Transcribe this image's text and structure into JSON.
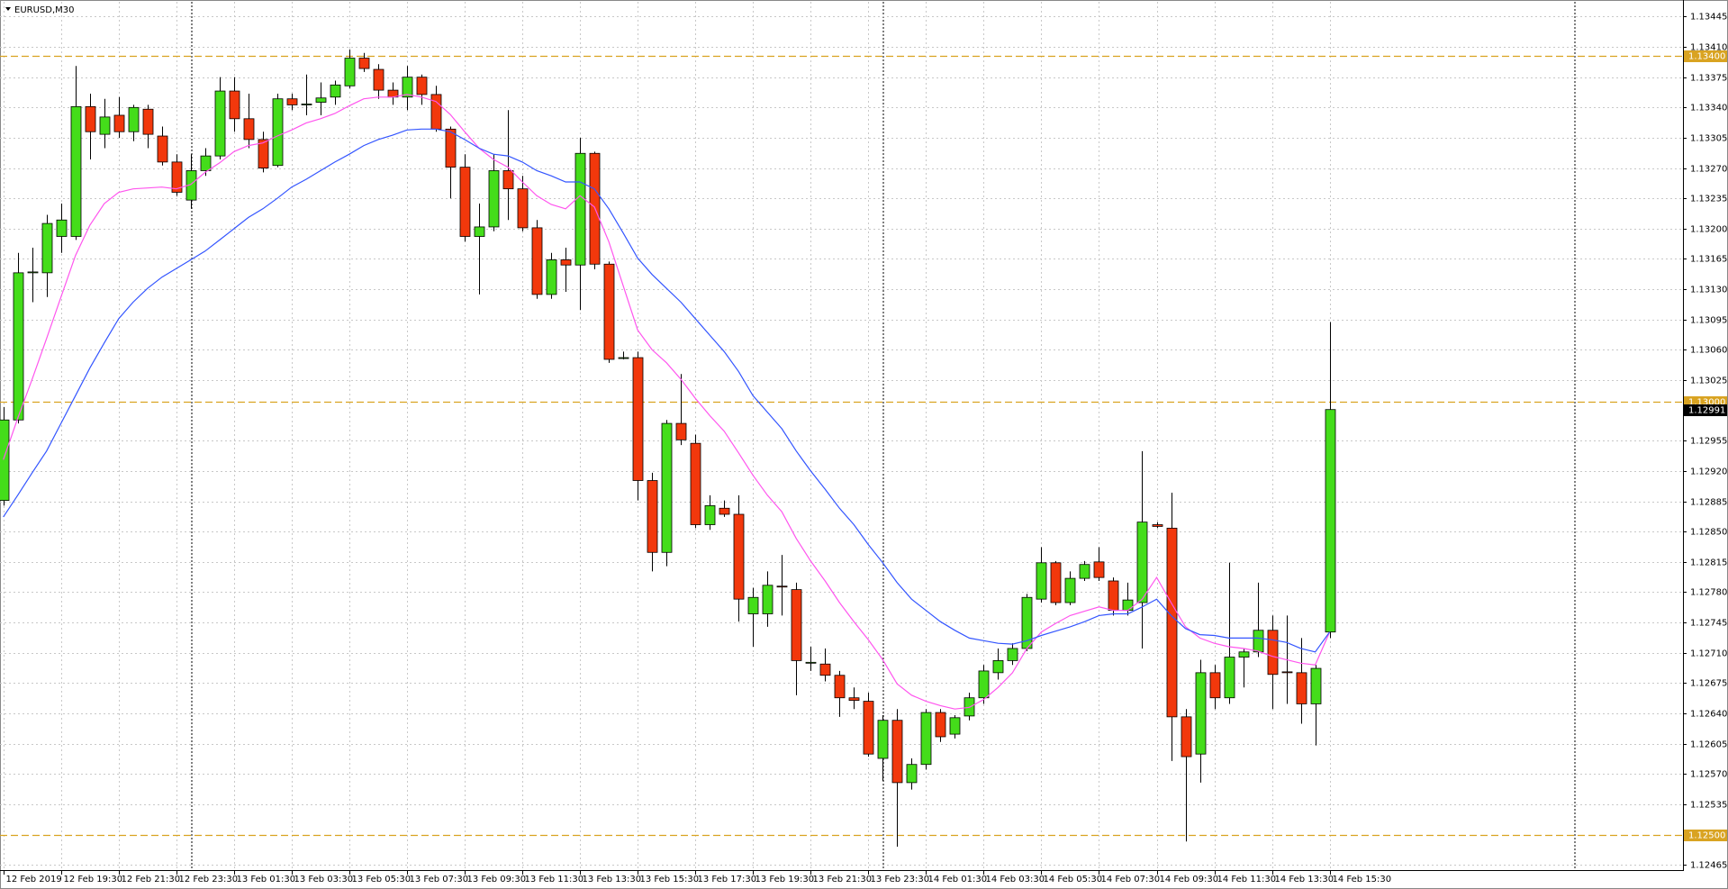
{
  "chart_data": {
    "type": "candlestick",
    "title": "EURUSD,M30",
    "categories": [
      "12 Feb 2019",
      null,
      null,
      null,
      "12 Feb 19:30",
      null,
      null,
      null,
      "12 Feb 21:30",
      null,
      null,
      null,
      "12 Feb 23:30",
      null,
      null,
      null,
      "13 Feb 01:30",
      null,
      null,
      null,
      "13 Feb 03:30",
      null,
      null,
      null,
      "13 Feb 05:30",
      null,
      null,
      null,
      "13 Feb 07:30",
      null,
      null,
      null,
      "13 Feb 09:30",
      null,
      null,
      null,
      "13 Feb 11:30",
      null,
      null,
      null,
      "13 Feb 13:30",
      null,
      null,
      null,
      "13 Feb 15:30",
      null,
      null,
      null,
      "13 Feb 17:30",
      null,
      null,
      null,
      "13 Feb 19:30",
      null,
      null,
      null,
      "13 Feb 21:30",
      null,
      null,
      null,
      "13 Feb 23:30",
      null,
      null,
      null,
      "14 Feb 01:30",
      null,
      null,
      null,
      "14 Feb 03:30",
      null,
      null,
      null,
      "14 Feb 05:30",
      null,
      null,
      null,
      "14 Feb 07:30",
      null,
      null,
      null,
      "14 Feb 09:30",
      null,
      null,
      null,
      "14 Feb 11:30",
      null,
      null,
      null,
      "14 Feb 13:30",
      null,
      null,
      null,
      "14 Feb 15:30"
    ],
    "open": [
      1.12886,
      1.12979,
      1.13149,
      1.13149,
      1.13191,
      1.13191,
      1.13341,
      1.13309,
      1.13331,
      1.13312,
      1.13338,
      1.13307,
      1.13277,
      1.13233,
      1.13267,
      1.13284,
      1.13359,
      1.13327,
      1.13303,
      1.13273,
      1.1335,
      1.13343,
      1.13346,
      1.13352,
      1.13365,
      1.13397,
      1.13384,
      1.1336,
      1.13352,
      1.13375,
      1.13355,
      1.13315,
      1.13271,
      1.13191,
      1.13202,
      1.13267,
      1.13246,
      1.13201,
      1.13124,
      1.13164,
      1.13158,
      1.13287,
      1.13159,
      1.1305,
      1.13051,
      1.12909,
      1.12826,
      1.12975,
      1.12952,
      1.12858,
      1.12877,
      1.1287,
      1.12755,
      1.12755,
      1.12787,
      1.12783,
      1.12698,
      1.12697,
      1.12684,
      1.12658,
      1.12654,
      1.12588,
      1.12632,
      1.1256,
      1.12581,
      1.12641,
      1.12616,
      1.12637,
      1.12658,
      1.12687,
      1.12701,
      1.12715,
      1.12772,
      1.12814,
      1.12768,
      1.12796,
      1.12815,
      1.12793,
      1.12759,
      1.12768,
      1.12858,
      1.12854,
      1.12636,
      1.12593,
      1.12687,
      1.12658,
      1.12705,
      1.12711,
      1.12736,
      1.12688,
      1.12687,
      1.12651,
      1.12734
    ],
    "high": [
      1.12994,
      1.13172,
      1.13178,
      1.13216,
      1.13229,
      1.13388,
      1.13356,
      1.1335,
      1.13352,
      1.13343,
      1.13343,
      1.13318,
      1.13286,
      1.13286,
      1.13293,
      1.13375,
      1.13375,
      1.13356,
      1.13312,
      1.13356,
      1.13356,
      1.13378,
      1.13369,
      1.13371,
      1.13407,
      1.13403,
      1.1339,
      1.13369,
      1.13388,
      1.13378,
      1.13365,
      1.13318,
      1.13286,
      1.13229,
      1.13286,
      1.13337,
      1.13261,
      1.1321,
      1.13172,
      1.13178,
      1.13305,
      1.13289,
      1.13162,
      1.13058,
      1.13058,
      1.12918,
      1.12979,
      1.13032,
      1.12962,
      1.12892,
      1.12886,
      1.12892,
      1.12785,
      1.12804,
      1.12823,
      1.12791,
      1.12717,
      1.12715,
      1.12689,
      1.1267,
      1.12664,
      1.12638,
      1.12645,
      1.12588,
      1.12645,
      1.12645,
      1.12638,
      1.12664,
      1.12696,
      1.12715,
      1.12721,
      1.12778,
      1.12832,
      1.12816,
      1.12804,
      1.12816,
      1.12832,
      1.12797,
      1.12791,
      1.12943,
      1.12861,
      1.12895,
      1.12645,
      1.12702,
      1.12696,
      1.12814,
      1.12715,
      1.12791,
      1.12753,
      1.12753,
      1.12727,
      1.12696,
      1.13092
    ],
    "low": [
      1.1288,
      1.12975,
      1.13115,
      1.13121,
      1.13172,
      1.13187,
      1.1328,
      1.13293,
      1.13305,
      1.13301,
      1.13293,
      1.13273,
      1.13238,
      1.13223,
      1.13261,
      1.1328,
      1.13312,
      1.13293,
      1.13265,
      1.13271,
      1.13337,
      1.13331,
      1.13331,
      1.13343,
      1.13362,
      1.13381,
      1.1335,
      1.13343,
      1.13337,
      1.13343,
      1.13312,
      1.13235,
      1.13185,
      1.13124,
      1.13197,
      1.1321,
      1.13197,
      1.13119,
      1.13119,
      1.13127,
      1.13106,
      1.13153,
      1.13045,
      1.13049,
      1.12886,
      1.12804,
      1.1281,
      1.1295,
      1.12854,
      1.12852,
      1.12867,
      1.12746,
      1.12717,
      1.1274,
      1.12753,
      1.12661,
      1.12689,
      1.12677,
      1.12636,
      1.12645,
      1.1259,
      1.12562,
      1.12486,
      1.12552,
      1.12575,
      1.12607,
      1.12611,
      1.12632,
      1.12651,
      1.12679,
      1.12696,
      1.12712,
      1.12768,
      1.12765,
      1.12765,
      1.12793,
      1.12793,
      1.12753,
      1.12753,
      1.12715,
      1.12854,
      1.12585,
      1.12492,
      1.1256,
      1.12645,
      1.12651,
      1.1267,
      1.12705,
      1.12645,
      1.12651,
      1.12628,
      1.12603,
      1.12727
    ],
    "close": [
      1.12979,
      1.13149,
      1.1315,
      1.13206,
      1.1321,
      1.13341,
      1.13312,
      1.13329,
      1.13312,
      1.1334,
      1.13309,
      1.13277,
      1.13242,
      1.13267,
      1.13284,
      1.13359,
      1.13327,
      1.13303,
      1.1327,
      1.1335,
      1.13343,
      1.13344,
      1.13351,
      1.13366,
      1.13397,
      1.13385,
      1.1336,
      1.13352,
      1.13375,
      1.13355,
      1.13315,
      1.13271,
      1.13191,
      1.13202,
      1.13267,
      1.13246,
      1.13201,
      1.13124,
      1.13164,
      1.13158,
      1.13287,
      1.13159,
      1.13049,
      1.13051,
      1.12909,
      1.12826,
      1.12975,
      1.12956,
      1.12858,
      1.1288,
      1.1287,
      1.12772,
      1.12774,
      1.12788,
      1.12786,
      1.12701,
      1.12699,
      1.12684,
      1.12658,
      1.12655,
      1.12593,
      1.12632,
      1.1256,
      1.12581,
      1.12641,
      1.12613,
      1.12635,
      1.12658,
      1.12689,
      1.12701,
      1.12715,
      1.12774,
      1.12814,
      1.12768,
      1.12796,
      1.12812,
      1.12797,
      1.12759,
      1.12771,
      1.12861,
      1.12856,
      1.12636,
      1.1259,
      1.12687,
      1.12658,
      1.12705,
      1.12711,
      1.12736,
      1.12685,
      1.12687,
      1.12651,
      1.12692,
      1.12991
    ],
    "up_color": "#44dd1a",
    "down_color": "#f2380c",
    "lines": [
      {
        "color": "#ff55ee",
        "values": [
          1.12933,
          1.12981,
          1.13026,
          1.13073,
          1.13121,
          1.13169,
          1.13204,
          1.13229,
          1.13242,
          1.13246,
          1.13247,
          1.13248,
          1.13246,
          1.13251,
          1.13265,
          1.13276,
          1.13289,
          1.13296,
          1.13299,
          1.13307,
          1.13314,
          1.13322,
          1.13327,
          1.13333,
          1.13342,
          1.1335,
          1.13352,
          1.13352,
          1.13355,
          1.13352,
          1.13347,
          1.13332,
          1.13312,
          1.13293,
          1.1328,
          1.13271,
          1.13254,
          1.13238,
          1.13228,
          1.13223,
          1.13238,
          1.13225,
          1.13185,
          1.13134,
          1.13083,
          1.1306,
          1.13045,
          1.13026,
          1.13004,
          1.12984,
          1.12966,
          1.12941,
          1.12915,
          1.12892,
          1.12873,
          1.12842,
          1.12816,
          1.12793,
          1.12768,
          1.12746,
          1.12725,
          1.12702,
          1.12674,
          1.12661,
          1.12654,
          1.12649,
          1.12645,
          1.12647,
          1.12656,
          1.1267,
          1.12687,
          1.12715,
          1.12734,
          1.12744,
          1.12753,
          1.12758,
          1.12763,
          1.12759,
          1.12759,
          1.12772,
          1.12797,
          1.12768,
          1.1274,
          1.12727,
          1.12721,
          1.12717,
          1.12715,
          1.12712,
          1.12706,
          1.12702,
          1.12698,
          1.12696,
          1.12734
        ]
      },
      {
        "color": "#3355ff",
        "values": [
          1.12867,
          1.12892,
          1.12918,
          1.12943,
          1.12975,
          1.13007,
          1.13039,
          1.13068,
          1.13096,
          1.13115,
          1.13131,
          1.13144,
          1.13154,
          1.13164,
          1.13174,
          1.13187,
          1.132,
          1.13213,
          1.13223,
          1.13235,
          1.13248,
          1.13257,
          1.13267,
          1.13277,
          1.13286,
          1.13296,
          1.13303,
          1.13308,
          1.13314,
          1.13315,
          1.13315,
          1.13312,
          1.13303,
          1.13293,
          1.13286,
          1.13284,
          1.13277,
          1.13267,
          1.13261,
          1.13254,
          1.13254,
          1.13246,
          1.13223,
          1.13195,
          1.13166,
          1.13147,
          1.13131,
          1.13115,
          1.13096,
          1.13077,
          1.13058,
          1.13035,
          1.13007,
          1.12988,
          1.12969,
          1.12943,
          1.1292,
          1.12899,
          1.12877,
          1.12858,
          1.12835,
          1.12814,
          1.12791,
          1.12772,
          1.12759,
          1.12746,
          1.12736,
          1.12727,
          1.12724,
          1.12721,
          1.1272,
          1.12724,
          1.1273,
          1.12735,
          1.1274,
          1.12746,
          1.12753,
          1.12755,
          1.12755,
          1.12763,
          1.12772,
          1.12753,
          1.12738,
          1.12731,
          1.1273,
          1.12727,
          1.12727,
          1.12727,
          1.12725,
          1.12722,
          1.12715,
          1.12711,
          1.12734
        ]
      }
    ],
    "levels": [
      {
        "value": 1.134,
        "label": "1.13400"
      },
      {
        "value": 1.13,
        "label": "1.13000"
      },
      {
        "value": 1.125,
        "label": "1.12500"
      }
    ],
    "level_color": "#d9a321",
    "last_price": 1.12991,
    "ylim": [
      1.1246,
      1.1346
    ],
    "yticks": [
      1.13445,
      {
        "value": 1.1341,
        "label": "1.13410"
      },
      1.13375,
      {
        "value": 1.1334,
        "label": "1.13340"
      },
      1.13305,
      {
        "value": 1.1327,
        "label": "1.13270"
      },
      1.13235,
      {
        "value": 1.132,
        "label": "1.13200"
      },
      1.13165,
      {
        "value": 1.1313,
        "label": "1.13130"
      },
      1.13095,
      {
        "value": 1.1306,
        "label": "1.13060"
      },
      1.13025,
      1.12955,
      {
        "value": 1.1292,
        "label": "1.12920"
      },
      1.12885,
      {
        "value": 1.1285,
        "label": "1.12850"
      },
      1.12815,
      {
        "value": 1.1278,
        "label": "1.12780"
      },
      1.12745,
      {
        "value": 1.1271,
        "label": "1.12710"
      },
      1.12675,
      {
        "value": 1.1264,
        "label": "1.12640"
      },
      1.12605,
      {
        "value": 1.1257,
        "label": "1.12570"
      },
      1.12535,
      1.12465
    ],
    "grid": true
  }
}
